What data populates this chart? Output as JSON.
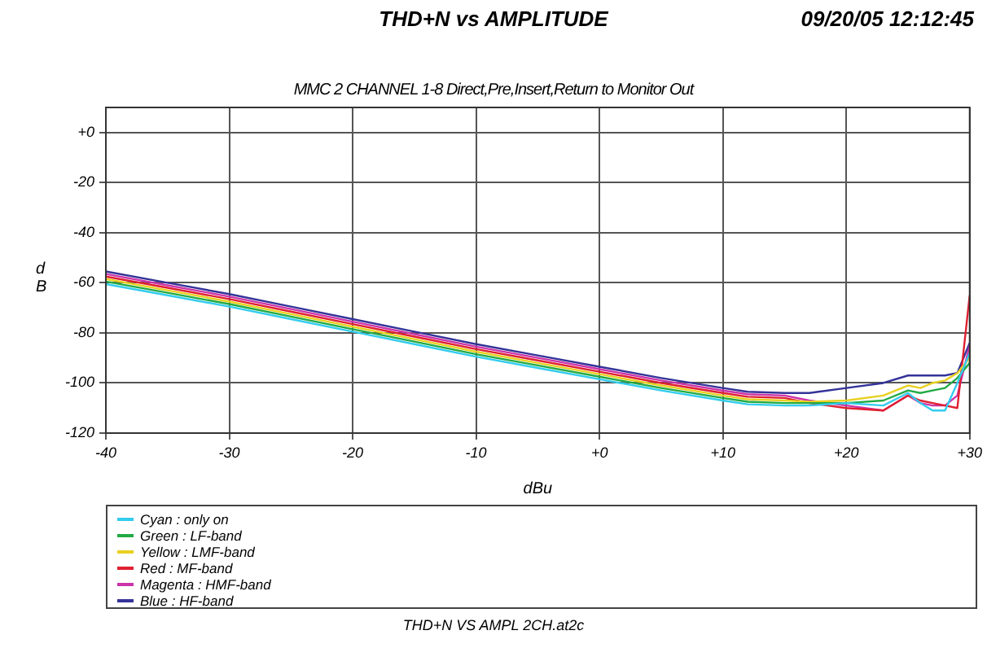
{
  "chart_data": {
    "type": "line",
    "title": "THD+N vs AMPLITUDE",
    "subtitle": "MMC 2 CHANNEL 1-8 Direct,Pre,Insert,Return to Monitor Out",
    "xlabel": "dBu",
    "ylabel": "dB",
    "annotations": [
      "09/20/05 12:12:45",
      "THD+N VS AMPL 2CH.at2c"
    ],
    "x": [
      -40,
      -35,
      -30,
      -25,
      -20,
      -15,
      -10,
      -5,
      0,
      5,
      10,
      12,
      15,
      17,
      20,
      23,
      25,
      26,
      27,
      28,
      29,
      30
    ],
    "xlim": [
      -40,
      30
    ],
    "xticks": [
      {
        "value": -40,
        "label": "-40"
      },
      {
        "value": -30,
        "label": "-30"
      },
      {
        "value": -20,
        "label": "-20"
      },
      {
        "value": -10,
        "label": "-10"
      },
      {
        "value": 0,
        "label": "+0"
      },
      {
        "value": 10,
        "label": "+10"
      },
      {
        "value": 20,
        "label": "+20"
      },
      {
        "value": 30,
        "label": "+30"
      }
    ],
    "ylim": [
      -120,
      10
    ],
    "yticks": [
      -120,
      -100,
      -80,
      -60,
      -40,
      -20,
      {
        "value": 0,
        "label": "+0"
      }
    ],
    "grid": true,
    "legend": "bottom",
    "marker": "none",
    "line_style": "solid",
    "series": [
      {
        "name": "Cyan : only on",
        "color": "#33ccee",
        "values": [
          -60.5,
          -65,
          -69.5,
          -74.5,
          -79.5,
          -84.5,
          -89.5,
          -94,
          -98.5,
          -103,
          -107,
          -108.5,
          -109,
          -109,
          -108,
          -109,
          -104,
          -108,
          -111,
          -111,
          -100,
          -88
        ]
      },
      {
        "name": "Green : LF-band",
        "color": "#22aa44",
        "values": [
          -59.5,
          -64,
          -68.5,
          -73.5,
          -78.5,
          -83.5,
          -88.5,
          -93,
          -97.5,
          -102,
          -106,
          -107.5,
          -108,
          -108,
          -108,
          -107,
          -103,
          -104,
          -103,
          -102,
          -98,
          -92
        ]
      },
      {
        "name": "Yellow : LMF-band",
        "color": "#e8d020",
        "values": [
          -58.5,
          -63,
          -67.5,
          -72.5,
          -77.5,
          -82.5,
          -87.5,
          -92,
          -96.5,
          -101,
          -105,
          -106.5,
          -107,
          -107.5,
          -107,
          -105,
          -101,
          -102,
          -100,
          -99,
          -96,
          -90
        ]
      },
      {
        "name": "Red : MF-band",
        "color": "#e02030",
        "values": [
          -57.5,
          -62,
          -66.5,
          -71.5,
          -76.5,
          -81.5,
          -86.5,
          -91,
          -95.5,
          -100,
          -104,
          -105.5,
          -106,
          -108,
          -110,
          -111,
          -105,
          -107,
          -108,
          -109,
          -110,
          -65
        ]
      },
      {
        "name": "Magenta : HMF-band",
        "color": "#cc33aa",
        "values": [
          -56.5,
          -61,
          -65.5,
          -70.5,
          -75.5,
          -80.5,
          -85.5,
          -90,
          -94.5,
          -99,
          -103,
          -104.5,
          -105,
          -107,
          -109,
          -111,
          -105,
          -108,
          -109,
          -109,
          -105,
          -85
        ]
      },
      {
        "name": "Blue : HF-band",
        "color": "#333399",
        "values": [
          -55.5,
          -60,
          -64.5,
          -69.5,
          -74.5,
          -79.5,
          -84.5,
          -89,
          -93.5,
          -98,
          -102,
          -103.5,
          -104,
          -104,
          -102,
          -100,
          -97,
          -97,
          -97,
          -97,
          -96,
          -84
        ]
      }
    ]
  }
}
